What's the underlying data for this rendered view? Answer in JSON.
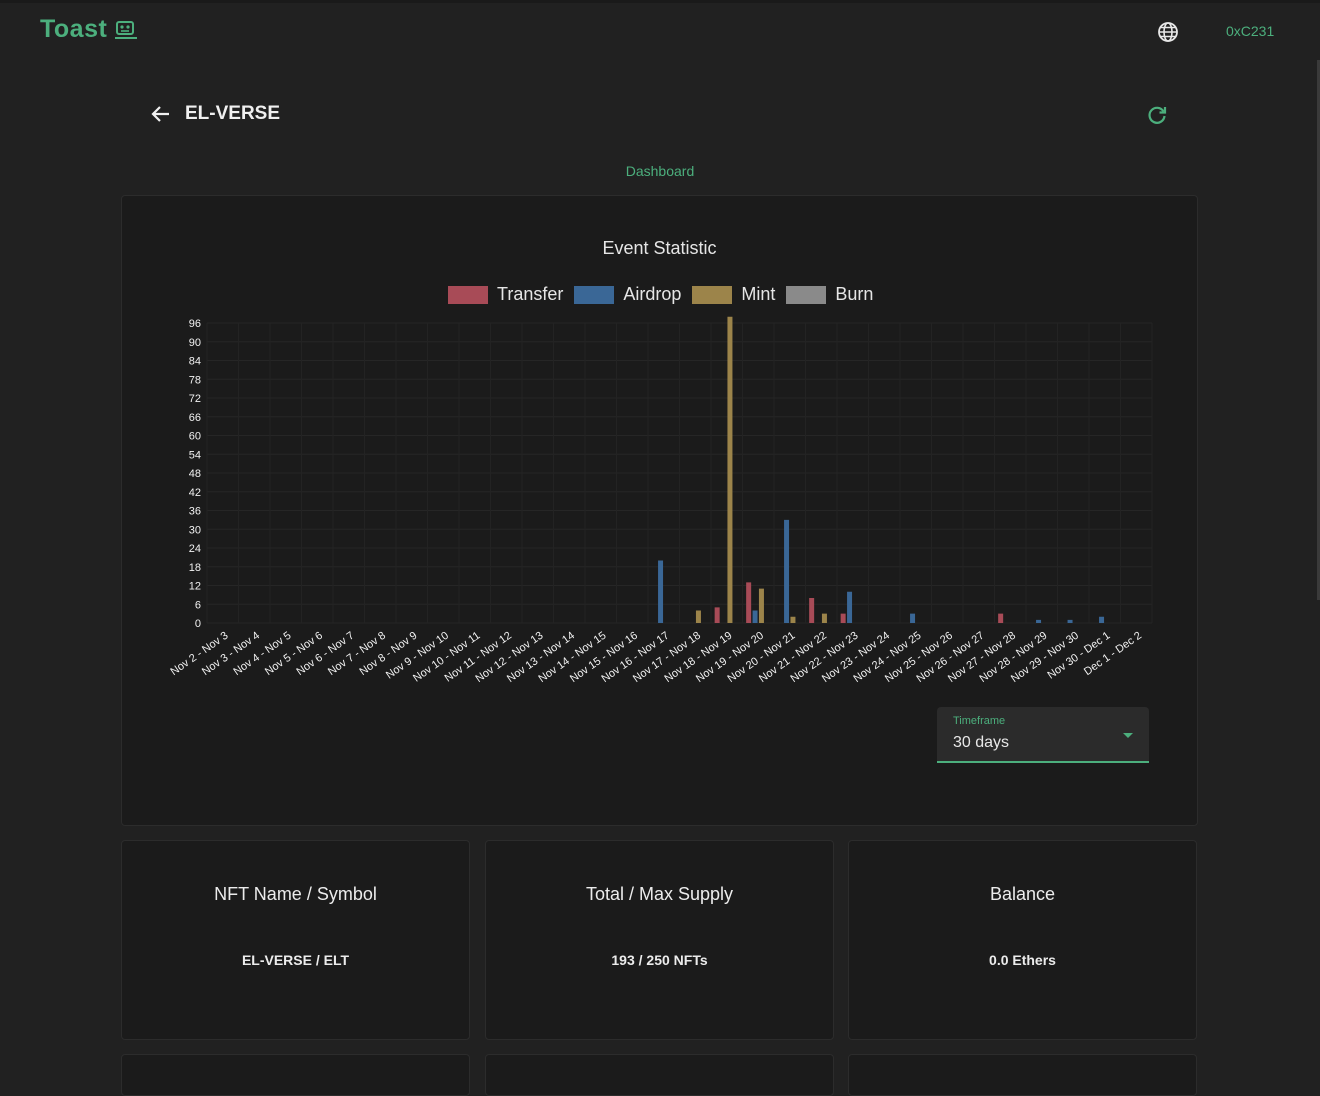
{
  "app": {
    "logo_text": "Toast",
    "wallet_address": "0xC231"
  },
  "page": {
    "title": "EL-VERSE",
    "tab_label": "Dashboard"
  },
  "timeframe": {
    "label": "Timeframe",
    "value": "30 days"
  },
  "colors": {
    "accent": "#4caf7d",
    "transfer": "#a84b57",
    "airdrop": "#3a6796",
    "mint": "#9c844a",
    "burn": "#8a8a8a"
  },
  "icons": {
    "logo": "robot-icon",
    "globe": "globe-icon",
    "back": "arrow-left-icon",
    "refresh": "refresh-icon",
    "dropdown": "caret-down-icon"
  },
  "chart_data": {
    "type": "bar",
    "title": "Event Statistic",
    "xlabel": "",
    "ylabel": "",
    "ylim": [
      0,
      96
    ],
    "yticks": [
      0,
      6,
      12,
      18,
      24,
      30,
      36,
      42,
      48,
      54,
      60,
      66,
      72,
      78,
      84,
      90,
      96
    ],
    "grid": true,
    "legend_position": "top-center",
    "categories": [
      "Nov 2 - Nov 3",
      "Nov 3 - Nov 4",
      "Nov 4 - Nov 5",
      "Nov 5 - Nov 6",
      "Nov 6 - Nov 7",
      "Nov 7 - Nov 8",
      "Nov 8 - Nov 9",
      "Nov 9 - Nov 10",
      "Nov 10 - Nov 11",
      "Nov 11 - Nov 12",
      "Nov 12 - Nov 13",
      "Nov 13 - Nov 14",
      "Nov 14 - Nov 15",
      "Nov 15 - Nov 16",
      "Nov 16 - Nov 17",
      "Nov 17 - Nov 18",
      "Nov 18 - Nov 19",
      "Nov 19 - Nov 20",
      "Nov 20 - Nov 21",
      "Nov 21 - Nov 22",
      "Nov 22 - Nov 23",
      "Nov 23 - Nov 24",
      "Nov 24 - Nov 25",
      "Nov 25 - Nov 26",
      "Nov 26 - Nov 27",
      "Nov 27 - Nov 28",
      "Nov 28 - Nov 29",
      "Nov 29 - Nov 30",
      "Nov 30 - Dec 1",
      "Dec 1 - Dec 2"
    ],
    "series": [
      {
        "name": "Transfer",
        "color": "#a84b57",
        "values": [
          0,
          0,
          0,
          0,
          0,
          0,
          0,
          0,
          0,
          0,
          0,
          0,
          0,
          0,
          0,
          0,
          5,
          13,
          0,
          8,
          3,
          0,
          0,
          0,
          0,
          3,
          0,
          0,
          0,
          0
        ]
      },
      {
        "name": "Airdrop",
        "color": "#3a6796",
        "values": [
          0,
          0,
          0,
          0,
          0,
          0,
          0,
          0,
          0,
          0,
          0,
          0,
          0,
          0,
          20,
          0,
          0,
          4,
          33,
          0,
          10,
          0,
          3,
          0,
          0,
          0,
          1,
          1,
          2,
          0
        ]
      },
      {
        "name": "Mint",
        "color": "#9c844a",
        "values": [
          0,
          0,
          0,
          0,
          0,
          0,
          0,
          0,
          0,
          0,
          0,
          0,
          0,
          0,
          0,
          4,
          98,
          11,
          2,
          3,
          0,
          0,
          0,
          0,
          0,
          0,
          0,
          0,
          0,
          0
        ]
      },
      {
        "name": "Burn",
        "color": "#8a8a8a",
        "values": [
          0,
          0,
          0,
          0,
          0,
          0,
          0,
          0,
          0,
          0,
          0,
          0,
          0,
          0,
          0,
          0,
          0,
          0,
          0,
          0,
          0,
          0,
          0,
          0,
          0,
          0,
          0,
          0,
          0,
          0
        ]
      }
    ]
  },
  "info_cards": [
    {
      "title": "NFT Name / Symbol",
      "value": "EL-VERSE / ELT"
    },
    {
      "title": "Total / Max Supply",
      "value": "193 / 250 NFTs"
    },
    {
      "title": "Balance",
      "value": "0.0 Ethers"
    }
  ]
}
